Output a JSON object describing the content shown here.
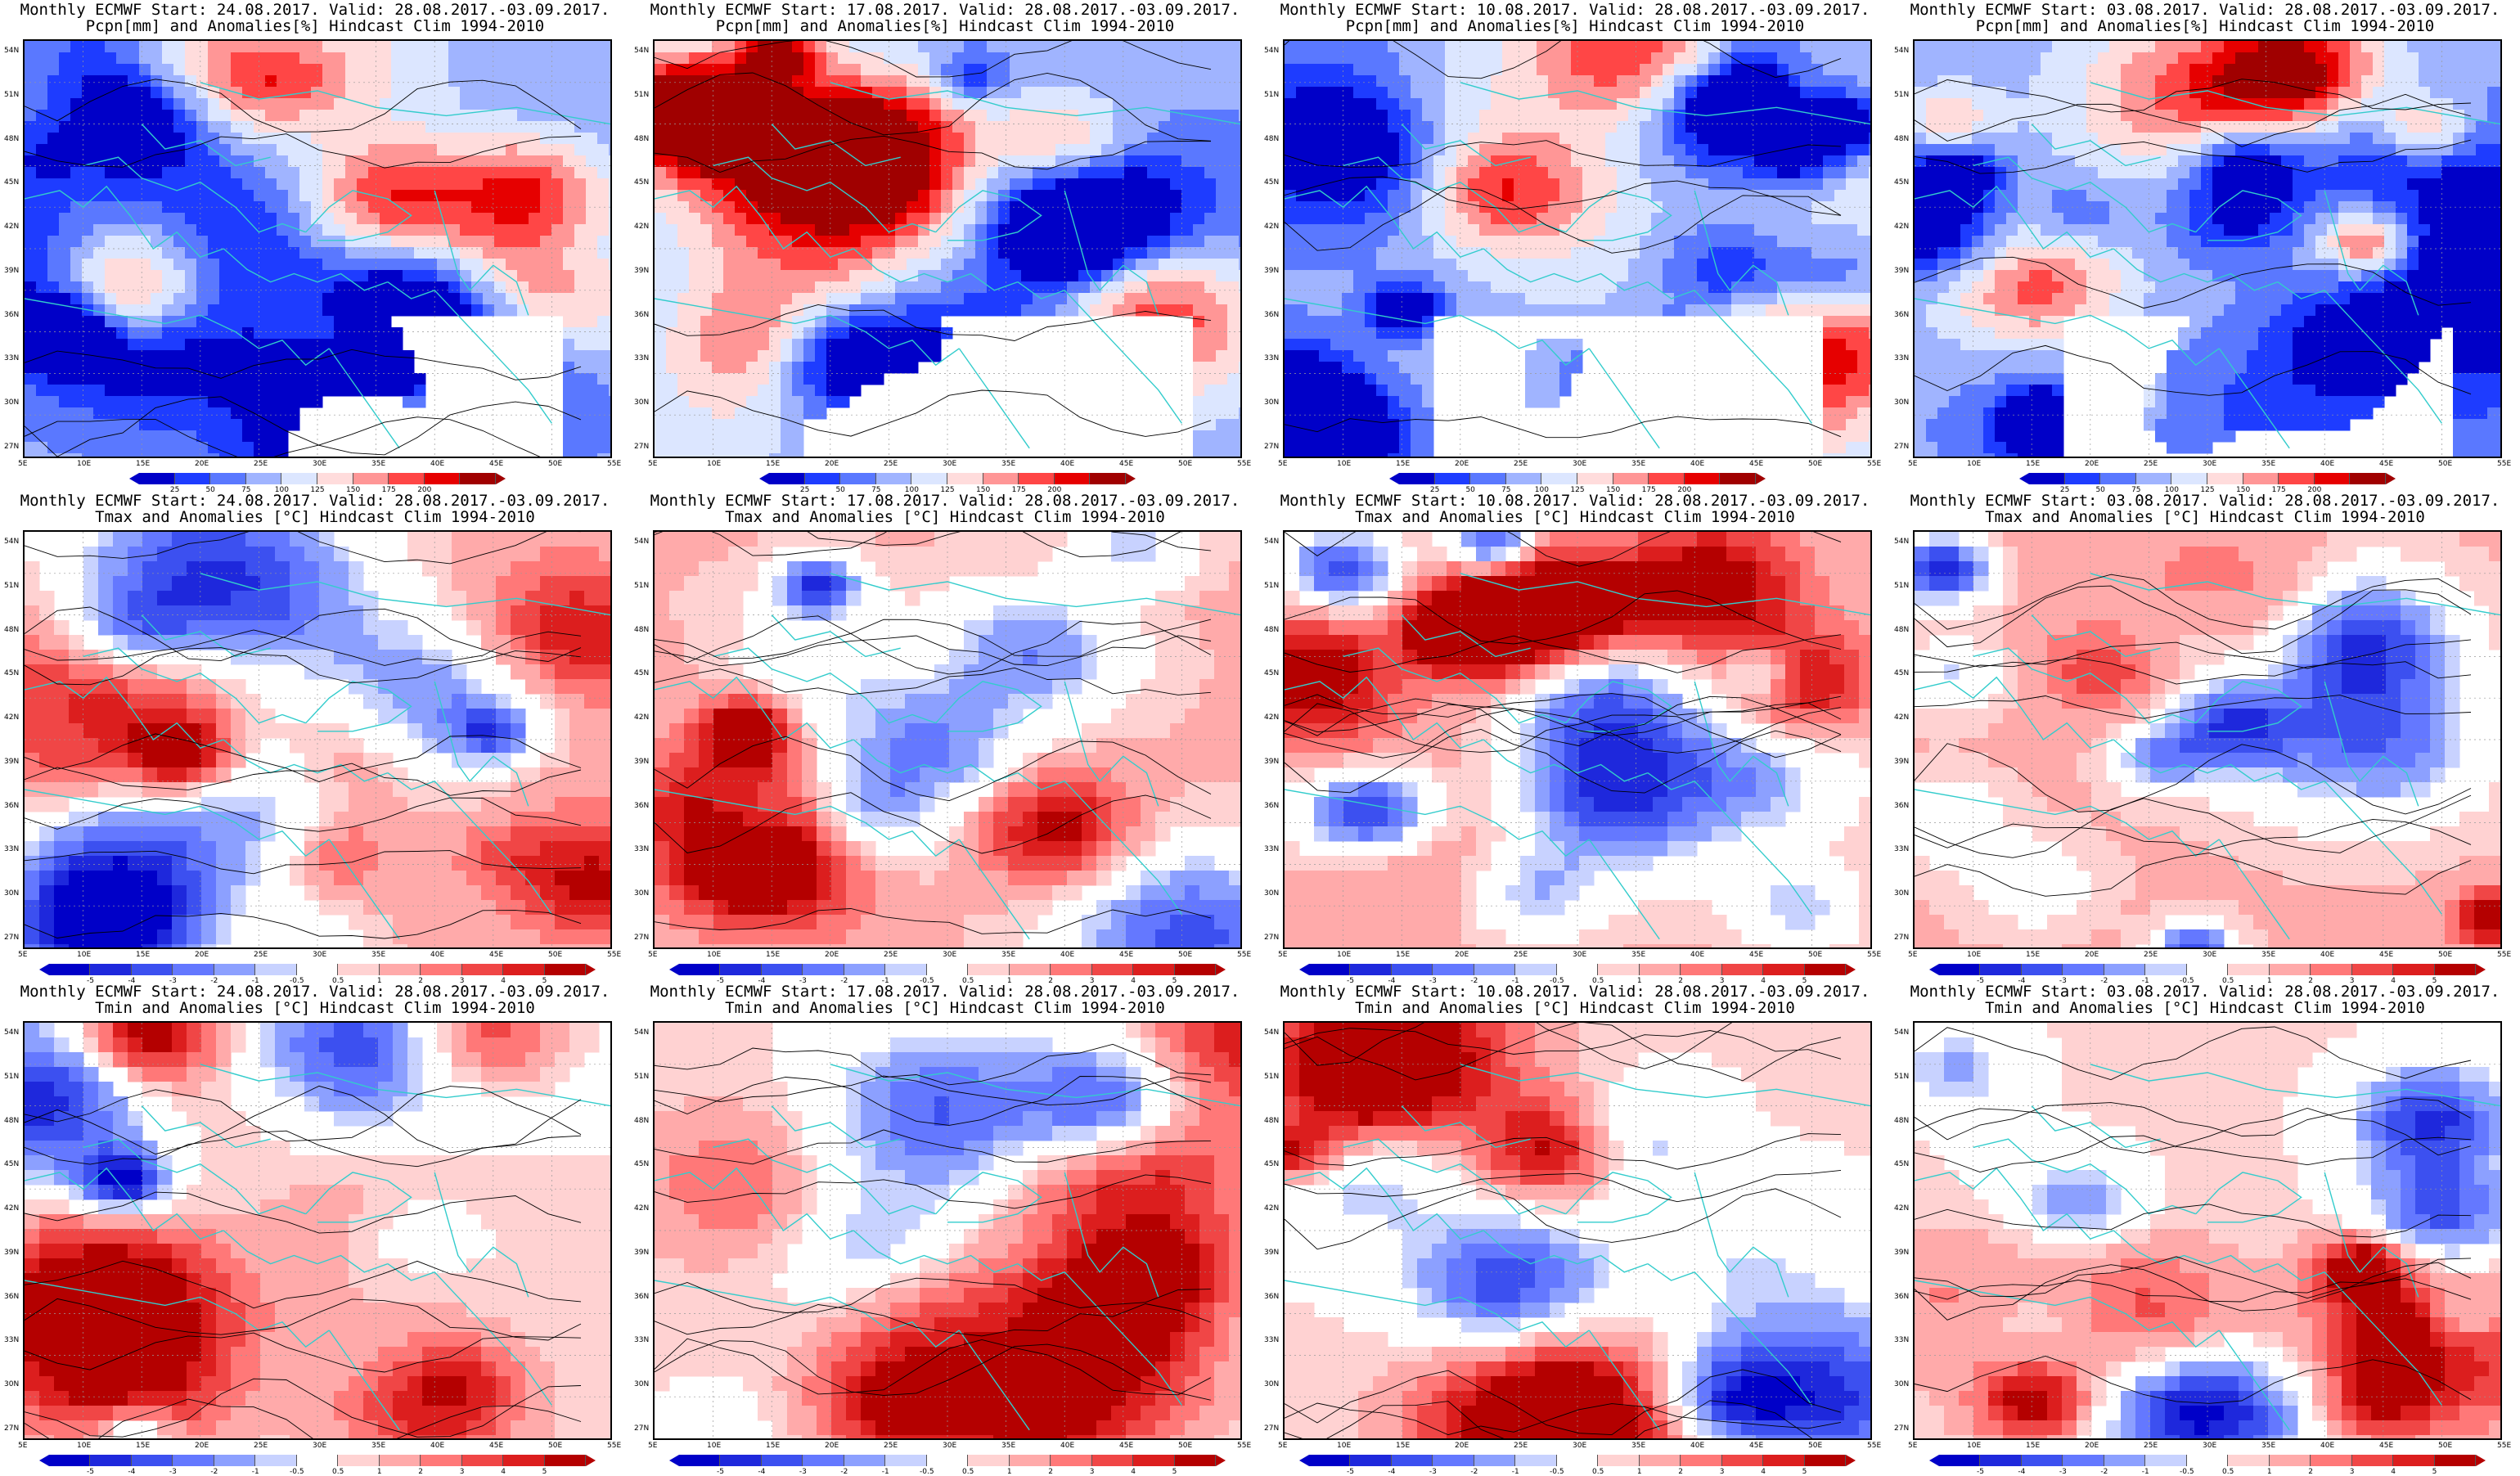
{
  "panels": [
    {
      "title1": "Monthly ECMWF Start: 24.08.2017. Valid: 28.08.2017.-03.09.2017.",
      "title2": "Pcpn[mm] and Anomalies[%] Hindcast Clim 1994-2010",
      "var": "pcpn",
      "start": "24.08.2017"
    },
    {
      "title1": "Monthly ECMWF Start: 17.08.2017. Valid: 28.08.2017.-03.09.2017.",
      "title2": "Pcpn[mm] and Anomalies[%] Hindcast Clim 1994-2010",
      "var": "pcpn",
      "start": "17.08.2017"
    },
    {
      "title1": "Monthly ECMWF Start: 10.08.2017. Valid: 28.08.2017.-03.09.2017.",
      "title2": "Pcpn[mm] and Anomalies[%] Hindcast Clim 1994-2010",
      "var": "pcpn",
      "start": "10.08.2017"
    },
    {
      "title1": "Monthly ECMWF Start: 03.08.2017. Valid: 28.08.2017.-03.09.2017.",
      "title2": "Pcpn[mm] and Anomalies[%] Hindcast Clim 1994-2010",
      "var": "pcpn",
      "start": "03.08.2017"
    },
    {
      "title1": "Monthly ECMWF Start: 24.08.2017. Valid: 28.08.2017.-03.09.2017.",
      "title2": "Tmax and Anomalies [°C] Hindcast Clim 1994-2010",
      "var": "tmax",
      "start": "24.08.2017"
    },
    {
      "title1": "Monthly ECMWF Start: 17.08.2017. Valid: 28.08.2017.-03.09.2017.",
      "title2": "Tmax and Anomalies [°C] Hindcast Clim 1994-2010",
      "var": "tmax",
      "start": "17.08.2017"
    },
    {
      "title1": "Monthly ECMWF Start: 10.08.2017. Valid: 28.08.2017.-03.09.2017.",
      "title2": "Tmax and Anomalies [°C] Hindcast Clim 1994-2010",
      "var": "tmax",
      "start": "10.08.2017"
    },
    {
      "title1": "Monthly ECMWF Start: 03.08.2017. Valid: 28.08.2017.-03.09.2017.",
      "title2": "Tmax and Anomalies [°C] Hindcast Clim 1994-2010",
      "var": "tmax",
      "start": "03.08.2017"
    },
    {
      "title1": "Monthly ECMWF Start: 24.08.2017. Valid: 28.08.2017.-03.09.2017.",
      "title2": "Tmin and Anomalies [°C] Hindcast Clim 1994-2010",
      "var": "tmin",
      "start": "24.08.2017"
    },
    {
      "title1": "Monthly ECMWF Start: 17.08.2017. Valid: 28.08.2017.-03.09.2017.",
      "title2": "Tmin and Anomalies [°C] Hindcast Clim 1994-2010",
      "var": "tmin",
      "start": "17.08.2017"
    },
    {
      "title1": "Monthly ECMWF Start: 10.08.2017. Valid: 28.08.2017.-03.09.2017.",
      "title2": "Tmin and Anomalies [°C] Hindcast Clim 1994-2010",
      "var": "tmin",
      "start": "10.08.2017"
    },
    {
      "title1": "Monthly ECMWF Start: 03.08.2017. Valid: 28.08.2017.-03.09.2017.",
      "title2": "Tmin and Anomalies [°C] Hindcast Clim 1994-2010",
      "var": "tmin",
      "start": "03.08.2017"
    }
  ],
  "axes": {
    "lat_ticks": [
      "54N",
      "51N",
      "48N",
      "45N",
      "42N",
      "39N",
      "36N",
      "33N",
      "30N",
      "27N"
    ],
    "lon_ticks": [
      "5E",
      "10E",
      "15E",
      "20E",
      "25E",
      "30E",
      "35E",
      "40E",
      "45E",
      "50E",
      "55E"
    ]
  },
  "colorbars": {
    "pcpn": {
      "labels": [
        "25",
        "50",
        "75",
        "100",
        "125",
        "150",
        "175",
        "200"
      ],
      "colors": [
        "#0000c8",
        "#1e3cff",
        "#5a78ff",
        "#a0b4ff",
        "#dce6ff",
        "#ffdcdc",
        "#ff9696",
        "#ff4646",
        "#e60000",
        "#a00000"
      ]
    },
    "temp": {
      "labels": [
        "-5",
        "-4",
        "-3",
        "-2",
        "-1",
        "-0.5",
        "0.5",
        "1",
        "2",
        "3",
        "4",
        "5"
      ],
      "colors": [
        "#0000c8",
        "#1e28dc",
        "#3c50f0",
        "#6478ff",
        "#8ca0ff",
        "#c8d2ff",
        "#ffffff",
        "#ffd2d2",
        "#ffaaaa",
        "#ff7878",
        "#f04646",
        "#dc1e1e",
        "#b40000"
      ]
    }
  },
  "colors": {
    "coast": "#33cccc",
    "contour": "#000000"
  }
}
